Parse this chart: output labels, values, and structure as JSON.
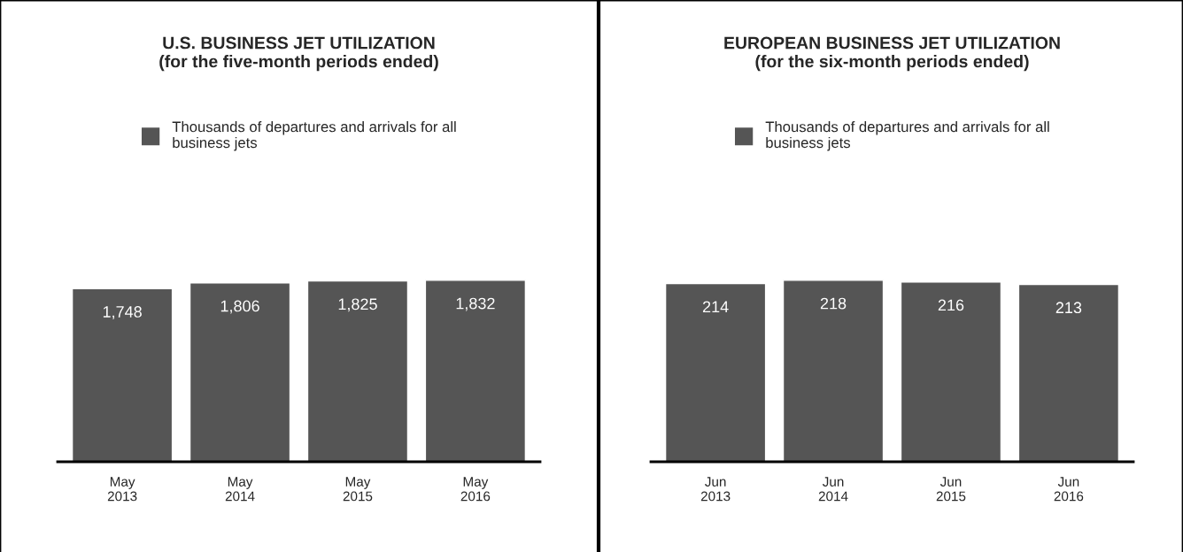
{
  "chart_data": [
    {
      "type": "bar",
      "title": "U.S. BUSINESS JET UTILIZATION\n(for the five-month periods ended)",
      "categories": [
        "May\n2013",
        "May\n2014",
        "May\n2015",
        "May\n2016"
      ],
      "series": [
        {
          "name": "Thousands of departures and arrivals for all business jets",
          "color": "#555555",
          "values": [
            1748,
            1806,
            1825,
            1832
          ],
          "value_labels": [
            "1,748",
            "1,806",
            "1,825",
            "1,832"
          ]
        }
      ],
      "legend": "top",
      "grid": false
    },
    {
      "type": "bar",
      "title": "EUROPEAN BUSINESS JET UTILIZATION\n(for the six-month periods ended)",
      "categories": [
        "Jun\n2013",
        "Jun\n2014",
        "Jun\n2015",
        "Jun\n2016"
      ],
      "series": [
        {
          "name": "Thousands of departures and arrivals for all business jets",
          "color": "#555555",
          "values": [
            214,
            218,
            216,
            213
          ]
        }
      ],
      "data_labels": true,
      "legend": "top",
      "grid": false
    }
  ]
}
